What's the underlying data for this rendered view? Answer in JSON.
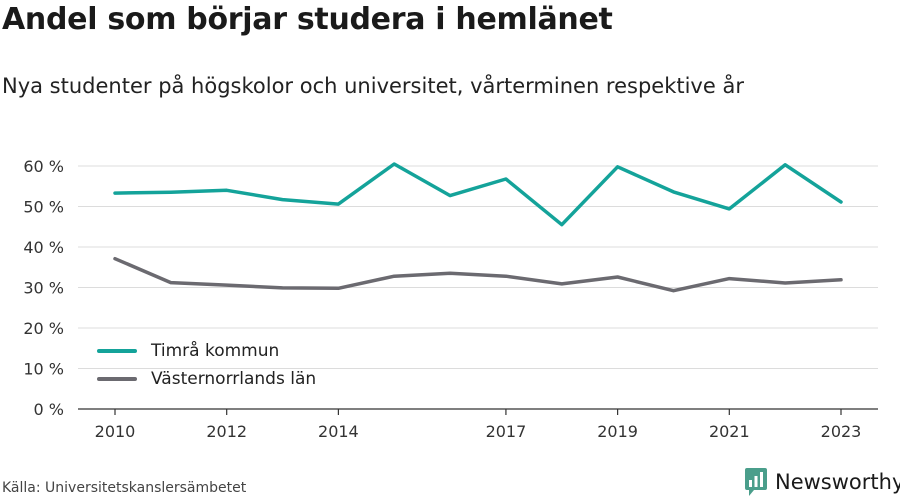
{
  "header": {
    "title": "Andel som börjar studera i hemlänet",
    "subtitle": "Nya studenter på högskolor och universitet, vårterminen respektive år"
  },
  "footer": {
    "source": "Källa: Universitetskanslersämbetet",
    "brand": "Newsworthy",
    "brand_color": "#4a9e8b"
  },
  "chart_data": {
    "type": "line",
    "x": [
      2010,
      2011,
      2012,
      2013,
      2014,
      2015,
      2016,
      2017,
      2018,
      2019,
      2020,
      2021,
      2022,
      2023
    ],
    "x_tick_labels": [
      "2010",
      "2012",
      "2014",
      "2017",
      "2019",
      "2021",
      "2023"
    ],
    "x_tick_values": [
      2010,
      2012,
      2014,
      2017,
      2019,
      2021,
      2023
    ],
    "y_tick_labels": [
      "0 %",
      "10 %",
      "20 %",
      "30 %",
      "40 %",
      "50 %",
      "60 %"
    ],
    "y_tick_values": [
      0,
      10,
      20,
      30,
      40,
      50,
      60
    ],
    "ylim": [
      0,
      60
    ],
    "xlim": [
      2010,
      2023
    ],
    "grid": true,
    "legend_position": "bottom-left",
    "series": [
      {
        "name": "Timrå kommun",
        "color": "#14a39a",
        "values": [
          53.3,
          53.5,
          54.0,
          51.7,
          50.6,
          60.5,
          52.7,
          56.8,
          45.5,
          59.8,
          53.6,
          49.4,
          60.3,
          51.1
        ]
      },
      {
        "name": "Västernorrlands län",
        "color": "#6b6a70",
        "values": [
          37.1,
          31.2,
          30.6,
          29.9,
          29.8,
          32.8,
          33.5,
          32.8,
          30.9,
          32.6,
          29.2,
          32.2,
          31.1,
          31.9
        ]
      }
    ]
  }
}
